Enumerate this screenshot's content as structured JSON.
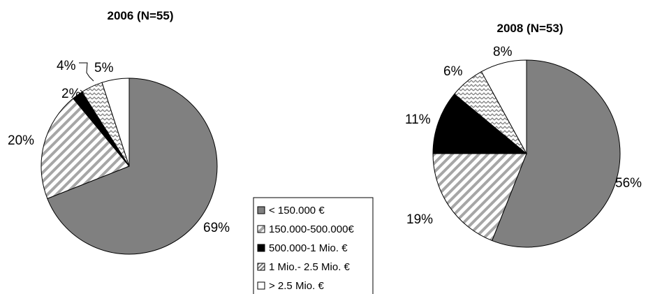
{
  "chart_data": [
    {
      "type": "pie",
      "title": "2006 (N=55)",
      "categories": [
        "< 150.000 €",
        "150.000-500.000€",
        "500.000-1 Mio. €",
        "1 Mio.- 2.5 Mio. €",
        "> 2.5 Mio. €"
      ],
      "values": [
        69,
        20,
        2,
        4,
        5
      ],
      "labels": [
        "69%",
        "20%",
        "2%",
        "4%",
        "5%"
      ]
    },
    {
      "type": "pie",
      "title": "2008 (N=53)",
      "categories": [
        "< 150.000 €",
        "150.000-500.000€",
        "500.000-1 Mio. €",
        "1 Mio.- 2.5 Mio. €",
        "> 2.5 Mio. €"
      ],
      "values": [
        56,
        19,
        11,
        6,
        8
      ],
      "labels": [
        "56%",
        "19%",
        "11%",
        "6%",
        "8%"
      ]
    }
  ],
  "legend": {
    "items": [
      {
        "label": "< 150.000 €",
        "pattern": "solid-gray"
      },
      {
        "label": "150.000-500.000€",
        "pattern": "wide-diagonal-stripes"
      },
      {
        "label": "500.000-1 Mio. €",
        "pattern": "solid-black"
      },
      {
        "label": "1 Mio.- 2.5 Mio. €",
        "pattern": "zigzag"
      },
      {
        "label": "> 2.5 Mio. €",
        "pattern": "white"
      }
    ]
  },
  "colors": {
    "gray": "#808080",
    "black": "#000000",
    "white": "#ffffff",
    "stroke": "#000000"
  }
}
